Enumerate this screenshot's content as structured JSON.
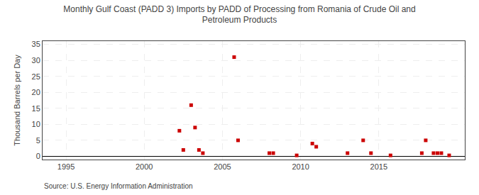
{
  "chart_data": {
    "type": "scatter",
    "title": "Monthly Gulf Coast (PADD 3) Imports by PADD of Processing from Romania of Crude Oil and\nPetroleum Products",
    "ylabel": "Thousand Barrels per Day",
    "annotations": [
      "Source: U.S. Energy Information Administration"
    ],
    "color": "#cc0000",
    "marker": "square",
    "grid": true,
    "xlim": [
      1993.5,
      2020.5
    ],
    "ylim": [
      -1,
      36
    ],
    "xticks": [
      1995,
      2000,
      2005,
      2010,
      2015
    ],
    "yticks": [
      0,
      5,
      10,
      15,
      20,
      25,
      30,
      35
    ],
    "x": [
      2002.25,
      2002.5,
      2003.0,
      2003.25,
      2003.5,
      2003.75,
      2005.75,
      2006.0,
      2008.0,
      2008.25,
      2009.75,
      2010.75,
      2011.0,
      2013.0,
      2014.0,
      2014.5,
      2015.75,
      2017.75,
      2018.0,
      2018.5,
      2018.75,
      2019.0,
      2019.5
    ],
    "values": [
      8,
      2,
      16,
      9,
      2,
      1,
      31,
      5,
      1,
      1,
      0.3,
      4,
      3,
      1,
      5,
      1,
      0.3,
      1,
      5,
      1,
      1,
      1,
      0.3
    ]
  }
}
